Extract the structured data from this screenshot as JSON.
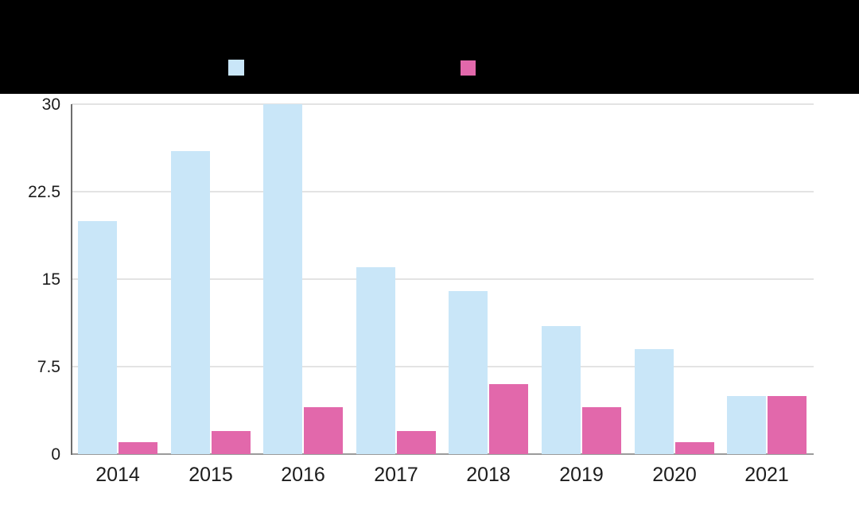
{
  "header": {
    "background_color": "#000000",
    "title_text_visible": false,
    "legend_swatches": [
      {
        "name": "blue-series-swatch",
        "color": "#c9e6f8"
      },
      {
        "name": "pink-series-swatch",
        "color": "#e268ab"
      }
    ]
  },
  "chart_data": {
    "type": "bar",
    "categories": [
      "2014",
      "2015",
      "2016",
      "2017",
      "2018",
      "2019",
      "2020",
      "2021"
    ],
    "series": [
      {
        "name": "blue-series",
        "color": "#c9e6f8",
        "values": [
          20,
          26,
          30,
          16,
          14,
          11,
          9,
          5
        ]
      },
      {
        "name": "pink-series",
        "color": "#e268ab",
        "values": [
          1,
          2,
          4,
          2,
          6,
          4,
          1,
          5
        ]
      }
    ],
    "title": "",
    "xlabel": "",
    "ylabel": "",
    "ylim": [
      0,
      30
    ],
    "yticks": [
      0,
      7.5,
      15,
      22.5,
      30
    ],
    "ytick_labels": [
      "0",
      "7.5",
      "15",
      "22.5",
      "30"
    ],
    "grid": true,
    "gridline_color": "#e3e3e3",
    "axis_line_color": "#6e6e6e",
    "baseline_color": "#9b9b9b",
    "label_color": "#1c1c1c",
    "legend_position": "top",
    "legend_labels_visible": false
  }
}
